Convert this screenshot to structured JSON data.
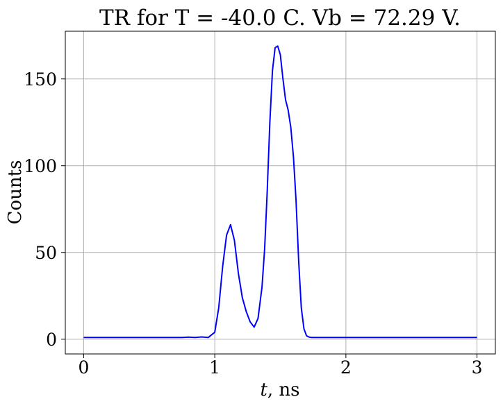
{
  "chart_data": {
    "type": "line",
    "title": "TR for T = -40.0 C. Vb = 72.29 V.",
    "xlabel_italic": "t",
    "xlabel_rest": ", ns",
    "ylabel": "Counts",
    "xlim": [
      -0.14,
      3.14
    ],
    "ylim": [
      -8.5,
      177.5
    ],
    "xticks": [
      0,
      1,
      2,
      3
    ],
    "yticks": [
      0,
      50,
      100,
      150
    ],
    "grid": true,
    "series": [
      {
        "color": "#0000ff",
        "x": [
          0,
          0.1,
          0.2,
          0.3,
          0.4,
          0.5,
          0.6,
          0.7,
          0.75,
          0.8,
          0.85,
          0.9,
          0.95,
          1.0,
          1.03,
          1.06,
          1.09,
          1.12,
          1.15,
          1.18,
          1.21,
          1.24,
          1.27,
          1.3,
          1.33,
          1.36,
          1.38,
          1.4,
          1.42,
          1.44,
          1.46,
          1.48,
          1.5,
          1.52,
          1.54,
          1.56,
          1.58,
          1.6,
          1.62,
          1.64,
          1.66,
          1.68,
          1.7,
          1.72,
          1.74,
          1.76,
          1.78,
          1.8,
          1.85,
          1.9,
          2.0,
          2.1,
          2.2,
          2.3,
          2.4,
          2.5,
          2.6,
          2.7,
          2.8,
          2.9,
          3.0
        ],
        "y": [
          1,
          1,
          1,
          1,
          1,
          1,
          1,
          1,
          1,
          1.2,
          1,
          1.3,
          1,
          4,
          18,
          42,
          60,
          66,
          57,
          38,
          24,
          16,
          10,
          7,
          12,
          30,
          52,
          85,
          125,
          155,
          168,
          169,
          164,
          150,
          138,
          132,
          122,
          105,
          80,
          45,
          18,
          6,
          2,
          1.2,
          1,
          1,
          1,
          1,
          1,
          1,
          1,
          1,
          1,
          1,
          1,
          1,
          1,
          1,
          1,
          1,
          1
        ]
      }
    ]
  }
}
